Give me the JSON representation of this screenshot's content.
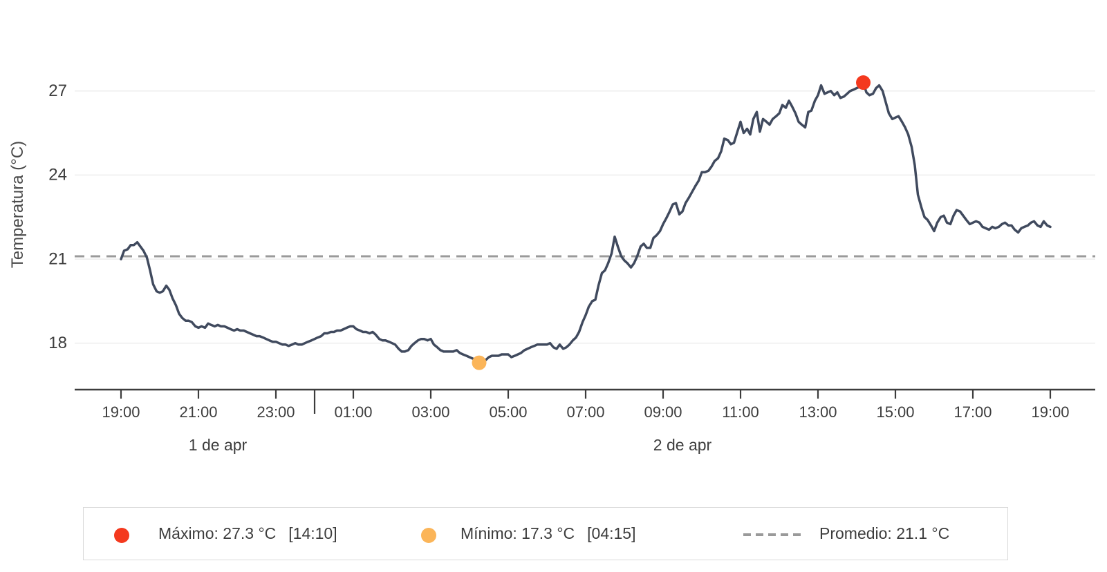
{
  "page": {
    "background": "#ffffff"
  },
  "chart_data": {
    "type": "line",
    "title": "",
    "xlabel": "",
    "ylabel": "Temperatura (°C)",
    "line_color": "#404a5e",
    "grid_color": "#ededed",
    "axis_color": "#3c3c3c",
    "text_color": "#3d3d3d",
    "x_axis": {
      "unit": "time",
      "start_label": "1 de apr 19:00",
      "end_label": "2 de apr 19:00",
      "tick_hours": [
        0,
        2,
        4,
        6,
        8,
        10,
        12,
        14,
        16,
        18,
        20,
        22,
        24
      ],
      "tick_labels": [
        "19:00",
        "21:00",
        "23:00",
        "01:00",
        "03:00",
        "05:00",
        "07:00",
        "09:00",
        "11:00",
        "13:00",
        "15:00",
        "17:00",
        "19:00"
      ],
      "day_boundary_hours": [
        5
      ],
      "day_labels": [
        {
          "text": "1 de apr",
          "center_hour": 2.5
        },
        {
          "text": "2 de apr",
          "center_hour": 14.5
        }
      ]
    },
    "y_axis": {
      "label": "Temperatura (°C)",
      "ticks": [
        18,
        21,
        24,
        27
      ],
      "range": [
        16.4,
        28.2
      ],
      "grid": true
    },
    "annotations": {
      "max": {
        "value": 27.3,
        "hour": 19.17,
        "time_label": "14:10",
        "color": "#f4391e",
        "marker": "dot"
      },
      "min": {
        "value": 17.3,
        "hour": 9.25,
        "time_label": "04:15",
        "color": "#fbb559",
        "marker": "dot"
      },
      "average": {
        "value": 21.1,
        "color": "#9a9a9a",
        "style": "dashed"
      }
    },
    "series": [
      {
        "name": "Temperatura",
        "color": "#404a5e",
        "points_hour_temp": [
          [
            0.0,
            21.0
          ],
          [
            0.08,
            21.3
          ],
          [
            0.17,
            21.35
          ],
          [
            0.25,
            21.5
          ],
          [
            0.33,
            21.5
          ],
          [
            0.42,
            21.6
          ],
          [
            0.5,
            21.45
          ],
          [
            0.58,
            21.3
          ],
          [
            0.67,
            21.05
          ],
          [
            0.75,
            20.6
          ],
          [
            0.83,
            20.1
          ],
          [
            0.92,
            19.85
          ],
          [
            1.0,
            19.8
          ],
          [
            1.08,
            19.85
          ],
          [
            1.17,
            20.05
          ],
          [
            1.25,
            19.9
          ],
          [
            1.33,
            19.6
          ],
          [
            1.42,
            19.35
          ],
          [
            1.5,
            19.05
          ],
          [
            1.58,
            18.9
          ],
          [
            1.67,
            18.8
          ],
          [
            1.75,
            18.8
          ],
          [
            1.83,
            18.75
          ],
          [
            1.92,
            18.6
          ],
          [
            2.0,
            18.55
          ],
          [
            2.08,
            18.6
          ],
          [
            2.17,
            18.55
          ],
          [
            2.25,
            18.7
          ],
          [
            2.33,
            18.65
          ],
          [
            2.42,
            18.6
          ],
          [
            2.5,
            18.65
          ],
          [
            2.58,
            18.6
          ],
          [
            2.67,
            18.6
          ],
          [
            2.75,
            18.55
          ],
          [
            2.83,
            18.5
          ],
          [
            2.92,
            18.45
          ],
          [
            3.0,
            18.5
          ],
          [
            3.08,
            18.45
          ],
          [
            3.17,
            18.45
          ],
          [
            3.25,
            18.4
          ],
          [
            3.33,
            18.35
          ],
          [
            3.42,
            18.3
          ],
          [
            3.5,
            18.25
          ],
          [
            3.58,
            18.25
          ],
          [
            3.67,
            18.2
          ],
          [
            3.75,
            18.15
          ],
          [
            3.83,
            18.1
          ],
          [
            3.92,
            18.05
          ],
          [
            4.0,
            18.05
          ],
          [
            4.08,
            18.0
          ],
          [
            4.17,
            17.95
          ],
          [
            4.25,
            17.95
          ],
          [
            4.33,
            17.9
          ],
          [
            4.42,
            17.95
          ],
          [
            4.5,
            18.0
          ],
          [
            4.58,
            17.95
          ],
          [
            4.67,
            17.95
          ],
          [
            4.75,
            18.0
          ],
          [
            4.83,
            18.05
          ],
          [
            4.92,
            18.1
          ],
          [
            5.0,
            18.15
          ],
          [
            5.08,
            18.2
          ],
          [
            5.17,
            18.25
          ],
          [
            5.25,
            18.35
          ],
          [
            5.33,
            18.35
          ],
          [
            5.42,
            18.4
          ],
          [
            5.5,
            18.4
          ],
          [
            5.58,
            18.45
          ],
          [
            5.67,
            18.45
          ],
          [
            5.75,
            18.5
          ],
          [
            5.83,
            18.55
          ],
          [
            5.92,
            18.6
          ],
          [
            6.0,
            18.6
          ],
          [
            6.08,
            18.5
          ],
          [
            6.17,
            18.45
          ],
          [
            6.25,
            18.4
          ],
          [
            6.33,
            18.4
          ],
          [
            6.42,
            18.35
          ],
          [
            6.5,
            18.4
          ],
          [
            6.58,
            18.3
          ],
          [
            6.67,
            18.15
          ],
          [
            6.75,
            18.1
          ],
          [
            6.83,
            18.1
          ],
          [
            6.92,
            18.05
          ],
          [
            7.0,
            18.0
          ],
          [
            7.08,
            17.95
          ],
          [
            7.17,
            17.8
          ],
          [
            7.25,
            17.7
          ],
          [
            7.33,
            17.7
          ],
          [
            7.42,
            17.75
          ],
          [
            7.5,
            17.9
          ],
          [
            7.58,
            18.0
          ],
          [
            7.67,
            18.1
          ],
          [
            7.75,
            18.15
          ],
          [
            7.83,
            18.15
          ],
          [
            7.92,
            18.1
          ],
          [
            8.0,
            18.15
          ],
          [
            8.08,
            17.95
          ],
          [
            8.17,
            17.85
          ],
          [
            8.25,
            17.75
          ],
          [
            8.33,
            17.7
          ],
          [
            8.42,
            17.7
          ],
          [
            8.5,
            17.7
          ],
          [
            8.58,
            17.7
          ],
          [
            8.67,
            17.75
          ],
          [
            8.75,
            17.65
          ],
          [
            8.83,
            17.6
          ],
          [
            8.92,
            17.55
          ],
          [
            9.0,
            17.5
          ],
          [
            9.08,
            17.45
          ],
          [
            9.17,
            17.4
          ],
          [
            9.25,
            17.3
          ],
          [
            9.33,
            17.35
          ],
          [
            9.42,
            17.4
          ],
          [
            9.5,
            17.5
          ],
          [
            9.58,
            17.55
          ],
          [
            9.67,
            17.55
          ],
          [
            9.75,
            17.55
          ],
          [
            9.83,
            17.6
          ],
          [
            9.92,
            17.6
          ],
          [
            10.0,
            17.6
          ],
          [
            10.08,
            17.5
          ],
          [
            10.17,
            17.55
          ],
          [
            10.25,
            17.6
          ],
          [
            10.33,
            17.65
          ],
          [
            10.42,
            17.75
          ],
          [
            10.5,
            17.8
          ],
          [
            10.58,
            17.85
          ],
          [
            10.67,
            17.9
          ],
          [
            10.75,
            17.95
          ],
          [
            10.83,
            17.95
          ],
          [
            10.92,
            17.95
          ],
          [
            11.0,
            17.95
          ],
          [
            11.08,
            18.0
          ],
          [
            11.17,
            17.85
          ],
          [
            11.25,
            17.8
          ],
          [
            11.33,
            17.95
          ],
          [
            11.42,
            17.8
          ],
          [
            11.5,
            17.85
          ],
          [
            11.58,
            17.95
          ],
          [
            11.67,
            18.1
          ],
          [
            11.75,
            18.2
          ],
          [
            11.83,
            18.4
          ],
          [
            11.92,
            18.75
          ],
          [
            12.0,
            19.0
          ],
          [
            12.08,
            19.3
          ],
          [
            12.17,
            19.5
          ],
          [
            12.25,
            19.55
          ],
          [
            12.33,
            20.05
          ],
          [
            12.42,
            20.5
          ],
          [
            12.5,
            20.6
          ],
          [
            12.58,
            20.85
          ],
          [
            12.67,
            21.2
          ],
          [
            12.75,
            21.8
          ],
          [
            12.83,
            21.45
          ],
          [
            12.92,
            21.1
          ],
          [
            13.0,
            20.95
          ],
          [
            13.08,
            20.85
          ],
          [
            13.17,
            20.7
          ],
          [
            13.25,
            20.85
          ],
          [
            13.33,
            21.1
          ],
          [
            13.42,
            21.45
          ],
          [
            13.5,
            21.55
          ],
          [
            13.58,
            21.4
          ],
          [
            13.67,
            21.4
          ],
          [
            13.75,
            21.75
          ],
          [
            13.83,
            21.85
          ],
          [
            13.92,
            22.0
          ],
          [
            14.0,
            22.25
          ],
          [
            14.08,
            22.45
          ],
          [
            14.17,
            22.7
          ],
          [
            14.25,
            22.95
          ],
          [
            14.33,
            23.0
          ],
          [
            14.42,
            22.6
          ],
          [
            14.5,
            22.7
          ],
          [
            14.58,
            23.0
          ],
          [
            14.67,
            23.2
          ],
          [
            14.75,
            23.4
          ],
          [
            14.83,
            23.6
          ],
          [
            14.92,
            23.8
          ],
          [
            15.0,
            24.1
          ],
          [
            15.08,
            24.1
          ],
          [
            15.17,
            24.15
          ],
          [
            15.25,
            24.3
          ],
          [
            15.33,
            24.5
          ],
          [
            15.42,
            24.6
          ],
          [
            15.5,
            24.85
          ],
          [
            15.58,
            25.3
          ],
          [
            15.67,
            25.25
          ],
          [
            15.75,
            25.1
          ],
          [
            15.83,
            25.15
          ],
          [
            15.92,
            25.55
          ],
          [
            16.0,
            25.9
          ],
          [
            16.08,
            25.5
          ],
          [
            16.17,
            25.65
          ],
          [
            16.25,
            25.45
          ],
          [
            16.33,
            26.0
          ],
          [
            16.42,
            26.25
          ],
          [
            16.5,
            25.55
          ],
          [
            16.58,
            26.0
          ],
          [
            16.67,
            25.9
          ],
          [
            16.75,
            25.8
          ],
          [
            16.83,
            26.0
          ],
          [
            16.92,
            26.1
          ],
          [
            17.0,
            26.2
          ],
          [
            17.08,
            26.5
          ],
          [
            17.17,
            26.4
          ],
          [
            17.25,
            26.65
          ],
          [
            17.33,
            26.45
          ],
          [
            17.42,
            26.2
          ],
          [
            17.5,
            25.9
          ],
          [
            17.58,
            25.8
          ],
          [
            17.67,
            25.7
          ],
          [
            17.75,
            26.25
          ],
          [
            17.83,
            26.3
          ],
          [
            17.92,
            26.65
          ],
          [
            18.0,
            26.85
          ],
          [
            18.08,
            27.2
          ],
          [
            18.17,
            26.9
          ],
          [
            18.25,
            26.95
          ],
          [
            18.33,
            27.0
          ],
          [
            18.42,
            26.85
          ],
          [
            18.5,
            26.95
          ],
          [
            18.58,
            26.75
          ],
          [
            18.67,
            26.8
          ],
          [
            18.75,
            26.9
          ],
          [
            18.83,
            27.0
          ],
          [
            18.92,
            27.05
          ],
          [
            19.0,
            27.1
          ],
          [
            19.08,
            27.15
          ],
          [
            19.17,
            27.3
          ],
          [
            19.25,
            26.95
          ],
          [
            19.33,
            26.85
          ],
          [
            19.42,
            26.9
          ],
          [
            19.5,
            27.1
          ],
          [
            19.58,
            27.2
          ],
          [
            19.67,
            27.0
          ],
          [
            19.75,
            26.6
          ],
          [
            19.83,
            26.2
          ],
          [
            19.92,
            26.0
          ],
          [
            20.0,
            26.05
          ],
          [
            20.08,
            26.1
          ],
          [
            20.17,
            25.9
          ],
          [
            20.25,
            25.7
          ],
          [
            20.33,
            25.45
          ],
          [
            20.42,
            25.0
          ],
          [
            20.5,
            24.35
          ],
          [
            20.58,
            23.3
          ],
          [
            20.67,
            22.85
          ],
          [
            20.75,
            22.5
          ],
          [
            20.83,
            22.4
          ],
          [
            20.92,
            22.2
          ],
          [
            21.0,
            22.0
          ],
          [
            21.08,
            22.3
          ],
          [
            21.17,
            22.5
          ],
          [
            21.25,
            22.55
          ],
          [
            21.33,
            22.3
          ],
          [
            21.42,
            22.25
          ],
          [
            21.5,
            22.55
          ],
          [
            21.58,
            22.75
          ],
          [
            21.67,
            22.7
          ],
          [
            21.75,
            22.55
          ],
          [
            21.83,
            22.4
          ],
          [
            21.92,
            22.25
          ],
          [
            22.0,
            22.3
          ],
          [
            22.08,
            22.35
          ],
          [
            22.17,
            22.3
          ],
          [
            22.25,
            22.15
          ],
          [
            22.33,
            22.1
          ],
          [
            22.42,
            22.05
          ],
          [
            22.5,
            22.15
          ],
          [
            22.58,
            22.1
          ],
          [
            22.67,
            22.15
          ],
          [
            22.75,
            22.25
          ],
          [
            22.83,
            22.3
          ],
          [
            22.92,
            22.2
          ],
          [
            23.0,
            22.2
          ],
          [
            23.08,
            22.05
          ],
          [
            23.17,
            21.95
          ],
          [
            23.25,
            22.1
          ],
          [
            23.33,
            22.15
          ],
          [
            23.42,
            22.2
          ],
          [
            23.5,
            22.3
          ],
          [
            23.58,
            22.35
          ],
          [
            23.67,
            22.2
          ],
          [
            23.75,
            22.15
          ],
          [
            23.83,
            22.35
          ],
          [
            23.92,
            22.2
          ],
          [
            24.0,
            22.15
          ]
        ]
      }
    ]
  },
  "legend": {
    "items": [
      {
        "marker": "dot",
        "color": "#f4391e",
        "label": "Máximo: 27.3 °C",
        "time": "[14:10]"
      },
      {
        "marker": "dot",
        "color": "#fbb559",
        "label": "Mínimo: 17.3 °C",
        "time": "[04:15]"
      },
      {
        "marker": "dashed-line",
        "color": "#9a9a9a",
        "label": "Promedio: 21.1 °C",
        "time": ""
      }
    ]
  }
}
